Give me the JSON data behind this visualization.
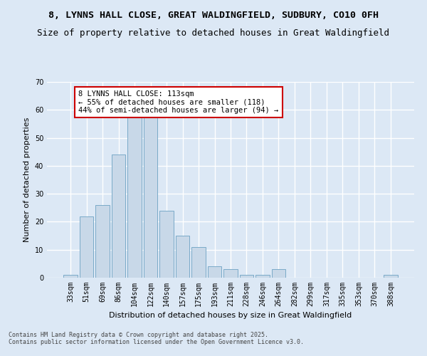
{
  "title_line1": "8, LYNNS HALL CLOSE, GREAT WALDINGFIELD, SUDBURY, CO10 0FH",
  "title_line2": "Size of property relative to detached houses in Great Waldingfield",
  "xlabel": "Distribution of detached houses by size in Great Waldingfield",
  "ylabel": "Number of detached properties",
  "bar_labels": [
    "33sqm",
    "51sqm",
    "69sqm",
    "86sqm",
    "104sqm",
    "122sqm",
    "140sqm",
    "157sqm",
    "175sqm",
    "193sqm",
    "211sqm",
    "228sqm",
    "246sqm",
    "264sqm",
    "282sqm",
    "299sqm",
    "317sqm",
    "335sqm",
    "353sqm",
    "370sqm",
    "388sqm"
  ],
  "bar_values": [
    1,
    22,
    26,
    44,
    58,
    58,
    24,
    15,
    11,
    4,
    3,
    1,
    1,
    3,
    0,
    0,
    0,
    0,
    0,
    0,
    1
  ],
  "bar_color": "#c8d8e8",
  "bar_edgecolor": "#7aaac8",
  "background_color": "#dce8f5",
  "grid_color": "#ffffff",
  "annotation_text": "8 LYNNS HALL CLOSE: 113sqm\n← 55% of detached houses are smaller (118)\n44% of semi-detached houses are larger (94) →",
  "annotation_box_color": "#ffffff",
  "annotation_box_edgecolor": "#cc0000",
  "ylim": [
    0,
    70
  ],
  "yticks": [
    0,
    10,
    20,
    30,
    40,
    50,
    60,
    70
  ],
  "footer_line1": "Contains HM Land Registry data © Crown copyright and database right 2025.",
  "footer_line2": "Contains public sector information licensed under the Open Government Licence v3.0.",
  "title_fontsize": 9.5,
  "subtitle_fontsize": 9,
  "axis_label_fontsize": 8,
  "tick_fontsize": 7,
  "annotation_fontsize": 7.5,
  "footer_fontsize": 6
}
